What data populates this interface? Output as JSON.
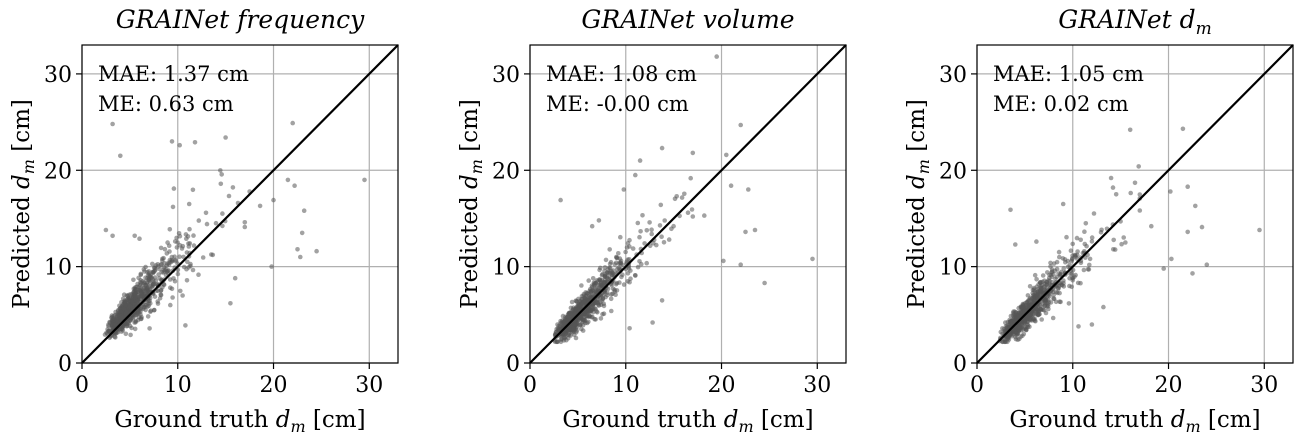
{
  "chart_data": [
    {
      "type": "scatter",
      "title": "GRAINet frequency",
      "xlabel": "Ground truth d_m [cm]",
      "ylabel": "Predicted d_m [cm]",
      "annotations": [
        "MAE: 1.37 cm",
        "ME: 0.63 cm"
      ],
      "xlim": [
        0,
        33
      ],
      "ylim": [
        0,
        33
      ],
      "xticks": [
        0,
        10,
        20,
        30
      ],
      "yticks": [
        0,
        10,
        20,
        30
      ],
      "grid": true,
      "reference_line": "y = x",
      "seed": 11,
      "n_points": 720,
      "bias": 0.63,
      "spread": 0.16,
      "outliers": [
        [
          3.2,
          24.8
        ],
        [
          4.0,
          21.5
        ],
        [
          9.4,
          23.0
        ],
        [
          10.2,
          22.6
        ],
        [
          11.8,
          22.9
        ],
        [
          15.0,
          23.4
        ],
        [
          22.0,
          24.9
        ],
        [
          29.5,
          19.0
        ],
        [
          21.5,
          19.0
        ],
        [
          22.2,
          18.4
        ],
        [
          20.0,
          16.9
        ],
        [
          18.6,
          16.3
        ],
        [
          23.2,
          15.8
        ],
        [
          23.0,
          13.5
        ],
        [
          24.5,
          11.6
        ],
        [
          22.5,
          11.8
        ],
        [
          19.8,
          10.0
        ],
        [
          16.0,
          8.8
        ],
        [
          15.5,
          6.2
        ],
        [
          10.8,
          3.9
        ],
        [
          3.2,
          13.2
        ],
        [
          5.5,
          13.2
        ],
        [
          6.0,
          12.9
        ],
        [
          2.5,
          13.8
        ],
        [
          9.5,
          16.2
        ],
        [
          9.6,
          18.1
        ],
        [
          11.2,
          16.5
        ],
        [
          14.5,
          18.6
        ],
        [
          17.5,
          17.8
        ],
        [
          22.8,
          11.0
        ]
      ]
    },
    {
      "type": "scatter",
      "title": "GRAINet volume",
      "xlabel": "Ground truth d_m [cm]",
      "ylabel": "Predicted d_m [cm]",
      "annotations": [
        "MAE: 1.08 cm",
        "ME: -0.00 cm"
      ],
      "xlim": [
        0,
        33
      ],
      "ylim": [
        0,
        33
      ],
      "xticks": [
        0,
        10,
        20,
        30
      ],
      "yticks": [
        0,
        10,
        20,
        30
      ],
      "grid": true,
      "reference_line": "y = x",
      "seed": 23,
      "n_points": 720,
      "bias": 0.0,
      "spread": 0.14,
      "outliers": [
        [
          19.5,
          31.8
        ],
        [
          22.0,
          24.7
        ],
        [
          11.5,
          21.0
        ],
        [
          13.8,
          22.3
        ],
        [
          17.0,
          21.8
        ],
        [
          20.5,
          21.6
        ],
        [
          21.0,
          18.4
        ],
        [
          22.8,
          18.0
        ],
        [
          29.5,
          10.8
        ],
        [
          24.5,
          8.3
        ],
        [
          22.0,
          10.2
        ],
        [
          20.2,
          10.6
        ],
        [
          16.5,
          15.6
        ],
        [
          18.2,
          15.3
        ],
        [
          15.0,
          14.2
        ],
        [
          13.8,
          6.5
        ],
        [
          12.8,
          4.2
        ],
        [
          10.4,
          3.6
        ],
        [
          3.2,
          16.9
        ],
        [
          6.5,
          14.2
        ],
        [
          7.2,
          14.8
        ],
        [
          9.8,
          18.0
        ],
        [
          11.0,
          19.5
        ],
        [
          22.5,
          13.6
        ],
        [
          23.5,
          13.8
        ]
      ]
    },
    {
      "type": "scatter",
      "title": "GRAINet d_m",
      "xlabel": "Ground truth d_m [cm]",
      "ylabel": "Predicted d_m [cm]",
      "annotations": [
        "MAE: 1.05 cm",
        "ME: 0.02 cm"
      ],
      "xlim": [
        0,
        33
      ],
      "ylim": [
        0,
        33
      ],
      "xticks": [
        0,
        10,
        20,
        30
      ],
      "yticks": [
        0,
        10,
        20,
        30
      ],
      "grid": true,
      "reference_line": "y = x",
      "seed": 37,
      "n_points": 720,
      "bias": 0.02,
      "spread": 0.13,
      "outliers": [
        [
          16.0,
          24.2
        ],
        [
          21.5,
          24.3
        ],
        [
          3.5,
          15.9
        ],
        [
          20.2,
          17.8
        ],
        [
          22.0,
          18.3
        ],
        [
          22.8,
          16.3
        ],
        [
          23.5,
          14.1
        ],
        [
          29.5,
          13.8
        ],
        [
          24.0,
          10.2
        ],
        [
          22.5,
          9.3
        ],
        [
          20.3,
          10.8
        ],
        [
          19.5,
          9.8
        ],
        [
          16.5,
          18.7
        ],
        [
          14.0,
          19.2
        ],
        [
          18.2,
          14.2
        ],
        [
          15.5,
          12.5
        ],
        [
          13.2,
          5.8
        ],
        [
          12.0,
          4.0
        ],
        [
          4.0,
          12.3
        ],
        [
          6.2,
          12.6
        ],
        [
          9.0,
          16.5
        ],
        [
          14.2,
          18.2
        ],
        [
          10.6,
          3.8
        ],
        [
          22.0,
          13.6
        ]
      ]
    }
  ]
}
